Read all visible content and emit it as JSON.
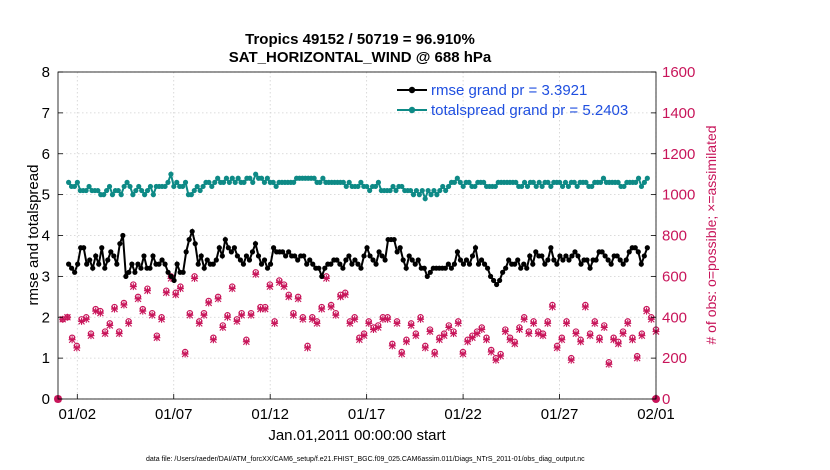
{
  "chart_data": {
    "type": "line",
    "title": "Tropics 49152 / 50719 = 96.910%",
    "subtitle": "SAT_HORIZONTAL_WIND @ 688 hPa",
    "xlabel": "Jan.01,2011 00:00:00 start",
    "ylabel": "rmse and totalspread",
    "ylabel_right": "# of obs: o=possible; ×=assimilated",
    "footnote": "data file: /Users/raeder/DAI/ATM_forcXX/CAM6_setup/f.e21.FHIST_BGC.f09_025.CAM6assim.011/Diags_NTrS_2011-01/obs_diag_output.nc",
    "xlim": [
      0,
      31
    ],
    "ylim": [
      0,
      8
    ],
    "ylim_right": [
      0,
      1600
    ],
    "x_ticks": [
      1,
      6,
      11,
      16,
      21,
      26,
      31
    ],
    "x_tick_labels": [
      "01/02",
      "01/07",
      "01/12",
      "01/17",
      "01/22",
      "01/27",
      "02/01"
    ],
    "y_ticks": [
      "0",
      "1",
      "2",
      "3",
      "4",
      "5",
      "6",
      "7",
      "8"
    ],
    "y_ticks_right": [
      "0",
      "200",
      "400",
      "600",
      "800",
      "1000",
      "1200",
      "1400",
      "1600"
    ],
    "legend": [
      "rmse grand pr = 3.3921",
      "totalspread grand pr = 5.2403"
    ],
    "colors": {
      "rmse": "#000000",
      "spread": "#0e8a86",
      "obs": "#c8155a"
    },
    "rmse": [
      3.3,
      3.2,
      3.1,
      3.3,
      3.7,
      3.7,
      3.3,
      3.4,
      3.2,
      3.5,
      3.3,
      3.7,
      3.2,
      3.4,
      3.6,
      3.5,
      3.3,
      3.8,
      4.0,
      3.0,
      3.1,
      3.3,
      3.1,
      3.3,
      3.2,
      3.5,
      3.2,
      3.2,
      3.5,
      3.3,
      3.3,
      3.4,
      3.3,
      3.1,
      3.0,
      2.9,
      3.3,
      3.1,
      3.1,
      3.6,
      3.9,
      4.1,
      3.8,
      3.3,
      3.5,
      3.2,
      3.4,
      3.3,
      3.3,
      3.4,
      3.7,
      3.5,
      3.9,
      3.7,
      3.6,
      3.7,
      3.5,
      3.4,
      3.3,
      3.5,
      3.4,
      3.6,
      3.8,
      3.5,
      3.3,
      3.4,
      3.2,
      3.3,
      3.7,
      3.6,
      3.6,
      3.6,
      3.5,
      3.6,
      3.5,
      3.5,
      3.4,
      3.5,
      3.5,
      3.3,
      3.4,
      3.3,
      3.2,
      3.2,
      3.0,
      3.2,
      3.3,
      3.3,
      3.4,
      3.4,
      3.3,
      3.2,
      3.4,
      3.5,
      3.3,
      3.4,
      3.3,
      3.2,
      3.5,
      3.7,
      3.5,
      3.4,
      3.3,
      3.6,
      3.5,
      3.4,
      3.9,
      3.9,
      3.9,
      3.6,
      3.7,
      3.4,
      3.2,
      3.5,
      3.4,
      3.3,
      3.4,
      3.2,
      3.2,
      3.0,
      3.1,
      3.2,
      3.2,
      3.2,
      3.2,
      3.2,
      3.3,
      3.2,
      3.3,
      3.6,
      3.4,
      3.3,
      3.4,
      3.3,
      3.5,
      3.7,
      3.3,
      3.4,
      3.3,
      3.2,
      3.0,
      2.9,
      2.8,
      2.9,
      3.1,
      3.2,
      3.4,
      3.3,
      3.3,
      3.4,
      3.2,
      3.3,
      3.2,
      3.5,
      3.3,
      3.6,
      3.5,
      3.5,
      3.3,
      3.4,
      3.7,
      3.4,
      3.3,
      3.5,
      3.4,
      3.5,
      3.4,
      3.5,
      3.6,
      3.5,
      3.3,
      3.4,
      3.4,
      3.2,
      3.4,
      3.4,
      3.6,
      3.6,
      3.5,
      3.4,
      3.3,
      3.5,
      3.5,
      3.4,
      3.3,
      3.4,
      3.6,
      3.7,
      3.7,
      3.6,
      3.3,
      3.5,
      3.7
    ],
    "spread": [
      5.3,
      5.2,
      5.2,
      5.3,
      5.1,
      5.1,
      5.1,
      5.2,
      5.1,
      5.1,
      5.1,
      5.0,
      5.0,
      5.1,
      5.2,
      5.0,
      5.1,
      5.1,
      5.0,
      5.2,
      5.3,
      5.2,
      5.0,
      5.1,
      5.2,
      5.1,
      5.0,
      5.1,
      5.2,
      5.0,
      5.2,
      5.2,
      5.2,
      5.2,
      5.3,
      5.5,
      5.2,
      5.3,
      5.2,
      5.2,
      5.3,
      5.0,
      5.0,
      5.1,
      5.2,
      5.1,
      5.2,
      5.3,
      5.3,
      5.2,
      5.3,
      5.4,
      5.3,
      5.3,
      5.4,
      5.3,
      5.4,
      5.3,
      5.4,
      5.3,
      5.3,
      5.4,
      5.4,
      5.3,
      5.5,
      5.4,
      5.4,
      5.3,
      5.4,
      5.3,
      5.3,
      5.2,
      5.3,
      5.3,
      5.3,
      5.3,
      5.3,
      5.3,
      5.4,
      5.4,
      5.4,
      5.4,
      5.4,
      5.4,
      5.4,
      5.3,
      5.3,
      5.4,
      5.3,
      5.3,
      5.3,
      5.3,
      5.3,
      5.3,
      5.3,
      5.2,
      5.3,
      5.2,
      5.2,
      5.2,
      5.3,
      5.2,
      5.2,
      5.1,
      5.2,
      5.2,
      5.3,
      5.1,
      5.1,
      5.1,
      5.1,
      5.2,
      5.1,
      5.2,
      5.2,
      5.1,
      5.1,
      5.1,
      5.0,
      5.1,
      5.0,
      5.1,
      4.9,
      5.1,
      5.0,
      5.1,
      5.0,
      5.1,
      5.2,
      5.1,
      5.2,
      5.3,
      5.3,
      5.4,
      5.3,
      5.2,
      5.3,
      5.3,
      5.2,
      5.2,
      5.3,
      5.3,
      5.3,
      5.2,
      5.2,
      5.2,
      5.2,
      5.3,
      5.3,
      5.3,
      5.3,
      5.3,
      5.3,
      5.3,
      5.2,
      5.2,
      5.3,
      5.2,
      5.3,
      5.3,
      5.2,
      5.3,
      5.2,
      5.3,
      5.3,
      5.2,
      5.3,
      5.3,
      5.3,
      5.2,
      5.3,
      5.2,
      5.3,
      5.3,
      5.2,
      5.3,
      5.3,
      5.3,
      5.2,
      5.2,
      5.3,
      5.3,
      5.3,
      5.4,
      5.3,
      5.3,
      5.3,
      5.3,
      5.3,
      5.2,
      5.2,
      5.3,
      5.3,
      5.3,
      5.3,
      5.4,
      5.2,
      5.3,
      5.4
    ],
    "obs_possible": [
      0,
      390,
      400,
      300,
      260,
      390,
      400,
      320,
      440,
      430,
      330,
      370,
      450,
      330,
      470,
      380,
      560,
      500,
      440,
      540,
      420,
      310,
      400,
      530,
      600,
      520,
      550,
      230,
      420,
      600,
      380,
      420,
      480,
      300,
      500,
      360,
      410,
      550,
      390,
      420,
      290,
      420,
      620,
      450,
      450,
      560,
      380,
      580,
      560,
      510,
      420,
      500,
      400,
      260,
      400,
      380,
      450,
      600,
      460,
      420,
      510,
      520,
      380,
      400,
      300,
      320,
      380,
      350,
      360,
      400,
      400,
      270,
      380,
      230,
      290,
      370,
      320,
      400,
      260,
      340,
      230,
      300,
      320,
      360,
      330,
      380,
      230,
      290,
      310,
      330,
      350,
      300,
      240,
      200,
      220,
      340,
      300,
      280,
      350,
      400,
      330,
      380,
      330,
      320,
      380,
      460,
      260,
      300,
      380,
      200,
      330,
      290,
      460,
      320,
      380,
      300,
      360,
      180,
      300,
      280,
      330,
      380,
      300,
      210,
      320,
      440,
      400,
      340
    ],
    "obs_assimilated": [
      0,
      390,
      400,
      290,
      250,
      380,
      390,
      310,
      430,
      420,
      320,
      360,
      440,
      320,
      460,
      370,
      550,
      490,
      430,
      530,
      410,
      300,
      390,
      520,
      590,
      510,
      540,
      220,
      410,
      590,
      370,
      410,
      470,
      290,
      490,
      350,
      400,
      540,
      380,
      410,
      280,
      410,
      610,
      440,
      440,
      550,
      370,
      570,
      550,
      500,
      410,
      490,
      390,
      250,
      390,
      370,
      440,
      590,
      450,
      410,
      500,
      510,
      370,
      390,
      290,
      310,
      370,
      340,
      350,
      390,
      390,
      260,
      370,
      220,
      280,
      360,
      310,
      390,
      250,
      330,
      220,
      290,
      310,
      350,
      320,
      370,
      220,
      280,
      300,
      320,
      340,
      290,
      230,
      190,
      210,
      330,
      290,
      270,
      340,
      390,
      320,
      370,
      320,
      310,
      370,
      450,
      250,
      290,
      370,
      190,
      320,
      280,
      450,
      310,
      370,
      290,
      350,
      170,
      290,
      270,
      320,
      370,
      290,
      200,
      310,
      430,
      390,
      330
    ]
  }
}
